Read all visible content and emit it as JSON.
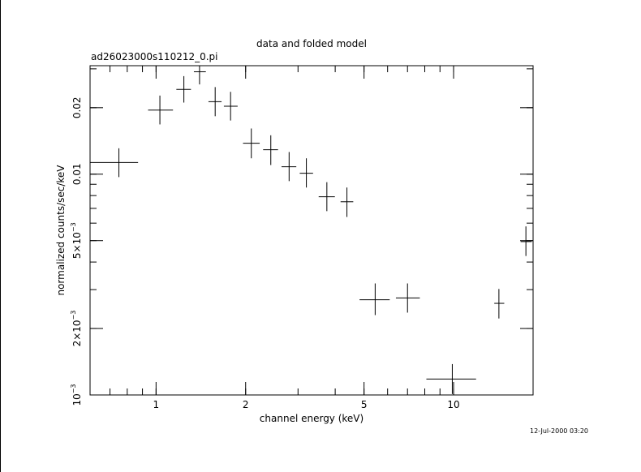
{
  "chart_data": {
    "type": "scatter",
    "title": "data and folded model",
    "subtitle": "ad26023000s110212_0.pi",
    "xlabel": "channel energy (keV)",
    "ylabel": "normalized counts/sec/keV",
    "x_scale": "log",
    "y_scale": "log",
    "xlim": [
      0.6,
      18.5
    ],
    "ylim": [
      0.001,
      0.031
    ],
    "x_ticks": [
      {
        "value": 1,
        "label": "1"
      },
      {
        "value": 2,
        "label": "2"
      },
      {
        "value": 5,
        "label": "5"
      },
      {
        "value": 10,
        "label": "10"
      }
    ],
    "y_ticks": [
      {
        "value": 0.001,
        "mantissa": "10",
        "exponent": "−3"
      },
      {
        "value": 0.002,
        "mantissa": "2×10",
        "exponent": "−3"
      },
      {
        "value": 0.005,
        "mantissa": "5×10",
        "exponent": "−3"
      },
      {
        "value": 0.01,
        "mantissa": "0.01",
        "exponent": ""
      },
      {
        "value": 0.02,
        "mantissa": "0.02",
        "exponent": ""
      }
    ],
    "series": [
      {
        "points": [
          {
            "x": 0.75,
            "xlo": 0.6,
            "xhi": 0.87,
            "y": 0.0113,
            "ylo": 0.0097,
            "yhi": 0.0131
          },
          {
            "x": 1.03,
            "xlo": 0.94,
            "xhi": 1.14,
            "y": 0.0195,
            "ylo": 0.0168,
            "yhi": 0.0227
          },
          {
            "x": 1.24,
            "xlo": 1.17,
            "xhi": 1.31,
            "y": 0.0242,
            "ylo": 0.0211,
            "yhi": 0.0278
          },
          {
            "x": 1.4,
            "xlo": 1.34,
            "xhi": 1.47,
            "y": 0.0291,
            "ylo": 0.0255,
            "yhi": 0.031
          },
          {
            "x": 1.58,
            "xlo": 1.5,
            "xhi": 1.66,
            "y": 0.0213,
            "ylo": 0.0183,
            "yhi": 0.0248
          },
          {
            "x": 1.78,
            "xlo": 1.69,
            "xhi": 1.88,
            "y": 0.0203,
            "ylo": 0.0175,
            "yhi": 0.0236
          },
          {
            "x": 2.09,
            "xlo": 1.96,
            "xhi": 2.23,
            "y": 0.0138,
            "ylo": 0.0118,
            "yhi": 0.0161
          },
          {
            "x": 2.43,
            "xlo": 2.29,
            "xhi": 2.57,
            "y": 0.0129,
            "ylo": 0.011,
            "yhi": 0.015
          },
          {
            "x": 2.8,
            "xlo": 2.64,
            "xhi": 2.96,
            "y": 0.0108,
            "ylo": 0.0093,
            "yhi": 0.0126
          },
          {
            "x": 3.2,
            "xlo": 3.04,
            "xhi": 3.37,
            "y": 0.0101,
            "ylo": 0.0087,
            "yhi": 0.0118
          },
          {
            "x": 3.75,
            "xlo": 3.52,
            "xhi": 3.99,
            "y": 0.0079,
            "ylo": 0.0068,
            "yhi": 0.0092
          },
          {
            "x": 4.38,
            "xlo": 4.17,
            "xhi": 4.6,
            "y": 0.0075,
            "ylo": 0.0064,
            "yhi": 0.0087
          },
          {
            "x": 5.45,
            "xlo": 4.83,
            "xhi": 6.1,
            "y": 0.0027,
            "ylo": 0.0023,
            "yhi": 0.0032
          },
          {
            "x": 7.0,
            "xlo": 6.4,
            "xhi": 7.7,
            "y": 0.00275,
            "ylo": 0.00236,
            "yhi": 0.0032
          },
          {
            "x": 9.9,
            "xlo": 8.1,
            "xhi": 11.9,
            "y": 0.00118,
            "ylo": 0.00101,
            "yhi": 0.00138
          },
          {
            "x": 14.2,
            "xlo": 13.7,
            "xhi": 14.8,
            "y": 0.0026,
            "ylo": 0.00222,
            "yhi": 0.00302
          },
          {
            "x": 17.5,
            "xlo": 16.8,
            "xhi": 18.3,
            "y": 0.00495,
            "ylo": 0.00426,
            "yhi": 0.0058
          }
        ]
      }
    ],
    "timestamp": "12-Jul-2000 03:20"
  }
}
